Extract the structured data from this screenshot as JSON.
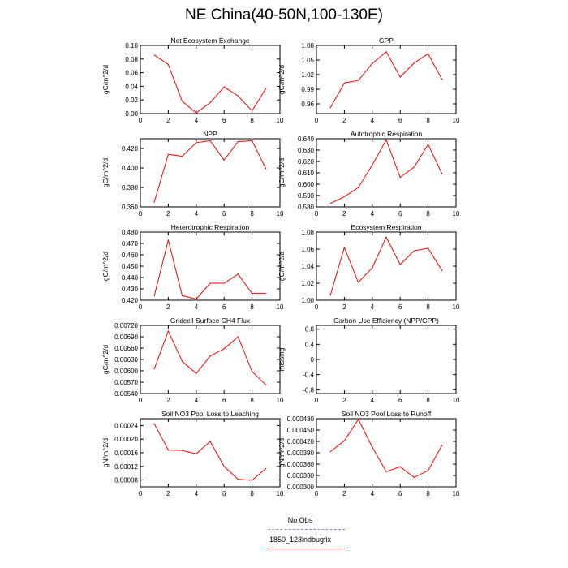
{
  "page": {
    "title": "NE China(40-50N,100-130E)"
  },
  "legend": {
    "items": [
      {
        "label": "No Obs",
        "color": "#8a8aff",
        "dash": true
      },
      {
        "label": "1850_123lndbugfix",
        "color": "#ff0000",
        "dash": false
      }
    ]
  },
  "chart_data": [
    {
      "type": "line",
      "title": "Net Ecosystem Exchange",
      "ylabel": "gC/m^2/d",
      "xlim": [
        0,
        10
      ],
      "xticks": [
        0,
        2,
        4,
        6,
        8,
        10
      ],
      "ylim": [
        0.0,
        0.1
      ],
      "yticks": [
        "0.00",
        "0.02",
        "0.04",
        "0.06",
        "0.08",
        "0.10"
      ],
      "grid": false,
      "series": [
        {
          "color": "#ff0000",
          "x": [
            1,
            2,
            3,
            4,
            5,
            6,
            7,
            8,
            9
          ],
          "y": [
            0.086,
            0.072,
            0.018,
            0.001,
            0.016,
            0.039,
            0.026,
            0.004,
            0.037
          ]
        }
      ]
    },
    {
      "type": "line",
      "title": "GPP",
      "ylabel": "gC/m^2/d",
      "xlim": [
        0,
        10
      ],
      "xticks": [
        0,
        2,
        4,
        6,
        8,
        10
      ],
      "ylim": [
        0.94,
        1.08
      ],
      "yticks": [
        "0.96",
        "0.99",
        "1.02",
        "1.05",
        "1.08"
      ],
      "grid": false,
      "series": [
        {
          "color": "#ff0000",
          "x": [
            1,
            2,
            3,
            4,
            5,
            6,
            7,
            8,
            9
          ],
          "y": [
            0.952,
            1.003,
            1.008,
            1.043,
            1.067,
            1.015,
            1.044,
            1.063,
            1.01
          ]
        }
      ]
    },
    {
      "type": "line",
      "title": "NPP",
      "ylabel": "gC/m^2/d",
      "xlim": [
        0,
        10
      ],
      "xticks": [
        0,
        2,
        4,
        6,
        8,
        10
      ],
      "ylim": [
        0.36,
        0.43
      ],
      "yticks": [
        "0.360",
        "0.380",
        "0.400",
        "0.420"
      ],
      "grid": false,
      "series": [
        {
          "color": "#ff0000",
          "x": [
            1,
            2,
            3,
            4,
            5,
            6,
            7,
            8,
            9
          ],
          "y": [
            0.365,
            0.414,
            0.412,
            0.426,
            0.428,
            0.408,
            0.427,
            0.428,
            0.399
          ]
        }
      ]
    },
    {
      "type": "line",
      "title": "Autotrophic Respiration",
      "ylabel": "gC/m^2/d",
      "xlim": [
        0,
        10
      ],
      "xticks": [
        0,
        2,
        4,
        6,
        8,
        10
      ],
      "ylim": [
        0.58,
        0.64
      ],
      "yticks": [
        "0.580",
        "0.590",
        "0.600",
        "0.610",
        "0.620",
        "0.630",
        "0.640"
      ],
      "grid": false,
      "series": [
        {
          "color": "#ff0000",
          "x": [
            1,
            2,
            3,
            4,
            5,
            6,
            7,
            8,
            9
          ],
          "y": [
            0.583,
            0.589,
            0.597,
            0.617,
            0.639,
            0.606,
            0.615,
            0.635,
            0.609
          ]
        }
      ]
    },
    {
      "type": "line",
      "title": "Heterotrophic Respiration",
      "ylabel": "gC/m^2/d",
      "xlim": [
        0,
        10
      ],
      "xticks": [
        0,
        2,
        4,
        6,
        8,
        10
      ],
      "ylim": [
        0.42,
        0.48
      ],
      "yticks": [
        "0.420",
        "0.430",
        "0.440",
        "0.450",
        "0.460",
        "0.470",
        "0.480"
      ],
      "grid": false,
      "series": [
        {
          "color": "#ff0000",
          "x": [
            1,
            2,
            3,
            4,
            5,
            6,
            7,
            8,
            9
          ],
          "y": [
            0.424,
            0.473,
            0.424,
            0.421,
            0.435,
            0.435,
            0.443,
            0.426,
            0.426
          ]
        }
      ]
    },
    {
      "type": "line",
      "title": "Ecosystem Respiration",
      "ylabel": "gC/m^2/d",
      "xlim": [
        0,
        10
      ],
      "xticks": [
        0,
        2,
        4,
        6,
        8,
        10
      ],
      "ylim": [
        1.0,
        1.08
      ],
      "yticks": [
        "1.00",
        "1.02",
        "1.04",
        "1.06",
        "1.08"
      ],
      "grid": false,
      "series": [
        {
          "color": "#ff0000",
          "x": [
            1,
            2,
            3,
            4,
            5,
            6,
            7,
            8,
            9
          ],
          "y": [
            1.006,
            1.062,
            1.021,
            1.038,
            1.074,
            1.042,
            1.058,
            1.061,
            1.035
          ]
        }
      ]
    },
    {
      "type": "line",
      "title": "Gridcell Surface CH4 Flux",
      "ylabel": "gC/m^2/d",
      "xlim": [
        0,
        10
      ],
      "xticks": [
        0,
        2,
        4,
        6,
        8,
        10
      ],
      "ylim": [
        0.0054,
        0.0072
      ],
      "yticks": [
        "0.00540",
        "0.00570",
        "0.00600",
        "0.00630",
        "0.00660",
        "0.00690",
        "0.00720"
      ],
      "grid": false,
      "series": [
        {
          "color": "#ff0000",
          "x": [
            1,
            2,
            3,
            4,
            5,
            6,
            7,
            8,
            9
          ],
          "y": [
            0.00605,
            0.00705,
            0.00625,
            0.00593,
            0.00639,
            0.00658,
            0.0069,
            0.00598,
            0.00563
          ]
        }
      ]
    },
    {
      "type": "line",
      "title": "Carbon Use Efficiency (NPP/GPP)",
      "ylabel": "missing",
      "xlim": [
        0,
        10
      ],
      "xticks": [
        0,
        2,
        4,
        6,
        8,
        10
      ],
      "ylim": [
        -0.9,
        0.9
      ],
      "yticks": [
        "-0.8",
        "-0.4",
        "0",
        "0.4",
        "0.8"
      ],
      "grid": false,
      "series": []
    },
    {
      "type": "line",
      "title": "Soil NO3 Pool Loss to Leaching",
      "ylabel": "gN/m^2/d",
      "xlim": [
        0,
        10
      ],
      "xticks": [
        0,
        2,
        4,
        6,
        8,
        10
      ],
      "ylim": [
        6e-05,
        0.00026
      ],
      "yticks": [
        "0.00008",
        "0.00012",
        "0.00016",
        "0.00020",
        "0.00024"
      ],
      "grid": false,
      "series": [
        {
          "color": "#ff0000",
          "x": [
            1,
            2,
            3,
            4,
            5,
            6,
            7,
            8,
            9
          ],
          "y": [
            0.000245,
            0.000168,
            0.000167,
            0.000157,
            0.000193,
            0.00012,
            8.2e-05,
            7.9e-05,
            0.000114
          ]
        }
      ]
    },
    {
      "type": "line",
      "title": "Soil NO3 Pool Loss to Runoff",
      "ylabel": "gN/m^2/d",
      "xlim": [
        0,
        10
      ],
      "xticks": [
        0,
        2,
        4,
        6,
        8,
        10
      ],
      "ylim": [
        0.0003,
        0.00048
      ],
      "yticks": [
        "0.000300",
        "0.000330",
        "0.000360",
        "0.000390",
        "0.000420",
        "0.000450",
        "0.000480"
      ],
      "grid": false,
      "series": [
        {
          "color": "#ff0000",
          "x": [
            1,
            2,
            3,
            4,
            5,
            6,
            7,
            8,
            9
          ],
          "y": [
            0.000393,
            0.000422,
            0.000478,
            0.000405,
            0.00034,
            0.000353,
            0.000325,
            0.000343,
            0.00041
          ]
        }
      ]
    }
  ]
}
